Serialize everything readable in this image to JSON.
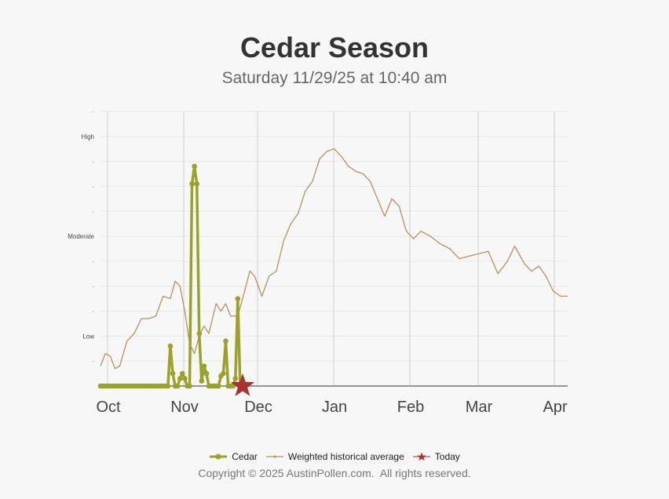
{
  "chart_data": {
    "type": "line",
    "title": "Cedar Season",
    "subtitle": "Saturday 11/29/25 at 10:40 am",
    "x_ticks": [
      "Oct",
      "Nov",
      "Dec",
      "Jan",
      "Feb",
      "Mar",
      "Apr"
    ],
    "y_ticks": [
      "",
      "Low",
      "",
      "",
      "",
      "Moderate",
      "",
      "",
      "",
      "High",
      ""
    ],
    "grid": true,
    "legend_position": "bottom",
    "series": [
      {
        "name": "Cedar",
        "color": "#9aa22a",
        "points": [
          [
            "2025-10-01",
            0
          ],
          [
            "2025-10-05",
            0
          ],
          [
            "2025-10-10",
            0
          ],
          [
            "2025-10-15",
            0
          ],
          [
            "2025-10-20",
            0
          ],
          [
            "2025-10-25",
            0
          ],
          [
            "2025-10-29",
            0
          ],
          [
            "2025-10-30",
            1.6
          ],
          [
            "2025-10-31",
            0.5
          ],
          [
            "2025-11-01",
            0
          ],
          [
            "2025-11-02",
            0
          ],
          [
            "2025-11-03",
            0.3
          ],
          [
            "2025-11-04",
            0.5
          ],
          [
            "2025-11-05",
            0.3
          ],
          [
            "2025-11-06",
            0
          ],
          [
            "2025-11-07",
            0
          ],
          [
            "2025-11-08",
            8.1
          ],
          [
            "2025-11-09",
            8.8
          ],
          [
            "2025-11-10",
            8.1
          ],
          [
            "2025-11-11",
            2.1
          ],
          [
            "2025-11-12",
            0.2
          ],
          [
            "2025-11-13",
            0.8
          ],
          [
            "2025-11-14",
            0.5
          ],
          [
            "2025-11-15",
            0
          ],
          [
            "2025-11-16",
            0
          ],
          [
            "2025-11-17",
            0
          ],
          [
            "2025-11-18",
            0
          ],
          [
            "2025-11-19",
            0
          ],
          [
            "2025-11-20",
            0.4
          ],
          [
            "2025-11-21",
            0.5
          ],
          [
            "2025-11-22",
            1.8
          ],
          [
            "2025-11-23",
            0
          ],
          [
            "2025-11-24",
            0
          ],
          [
            "2025-11-25",
            0
          ],
          [
            "2025-11-26",
            0.3
          ],
          [
            "2025-11-27",
            3.5
          ],
          [
            "2025-11-28",
            0
          ]
        ]
      },
      {
        "name": "Weighted historical average",
        "color": "#b89060",
        "points": [
          [
            "2025-10-01",
            0.8
          ],
          [
            "2025-10-03",
            1.3
          ],
          [
            "2025-10-05",
            1.2
          ],
          [
            "2025-10-07",
            0.7
          ],
          [
            "2025-10-09",
            0.8
          ],
          [
            "2025-10-12",
            1.8
          ],
          [
            "2025-10-15",
            2.1
          ],
          [
            "2025-10-18",
            2.7
          ],
          [
            "2025-10-21",
            2.7
          ],
          [
            "2025-10-24",
            2.8
          ],
          [
            "2025-10-27",
            3.6
          ],
          [
            "2025-10-30",
            3.5
          ],
          [
            "2025-11-01",
            4.2
          ],
          [
            "2025-11-03",
            4.0
          ],
          [
            "2025-11-05",
            3.0
          ],
          [
            "2025-11-07",
            1.7
          ],
          [
            "2025-11-09",
            1.3
          ],
          [
            "2025-11-11",
            2.0
          ],
          [
            "2025-11-13",
            2.4
          ],
          [
            "2025-11-15",
            2.1
          ],
          [
            "2025-11-18",
            3.3
          ],
          [
            "2025-11-20",
            3.0
          ],
          [
            "2025-11-22",
            3.3
          ],
          [
            "2025-11-24",
            2.8
          ],
          [
            "2025-11-27",
            2.8
          ],
          [
            "2025-11-29",
            3.5
          ],
          [
            "2025-12-02",
            4.6
          ],
          [
            "2025-12-04",
            4.4
          ],
          [
            "2025-12-07",
            3.6
          ],
          [
            "2025-12-10",
            4.4
          ],
          [
            "2025-12-13",
            4.6
          ],
          [
            "2025-12-16",
            5.8
          ],
          [
            "2025-12-19",
            6.5
          ],
          [
            "2025-12-22",
            6.9
          ],
          [
            "2025-12-25",
            7.8
          ],
          [
            "2025-12-28",
            8.2
          ],
          [
            "2025-12-31",
            9.1
          ],
          [
            "2026-01-03",
            9.4
          ],
          [
            "2026-01-06",
            9.5
          ],
          [
            "2026-01-09",
            9.2
          ],
          [
            "2026-01-12",
            8.8
          ],
          [
            "2026-01-15",
            8.6
          ],
          [
            "2026-01-18",
            8.5
          ],
          [
            "2026-01-21",
            8.2
          ],
          [
            "2026-01-24",
            7.5
          ],
          [
            "2026-01-27",
            6.8
          ],
          [
            "2026-01-30",
            7.5
          ],
          [
            "2026-02-02",
            7.2
          ],
          [
            "2026-02-05",
            6.2
          ],
          [
            "2026-02-08",
            5.9
          ],
          [
            "2026-02-11",
            6.2
          ],
          [
            "2026-02-15",
            6.0
          ],
          [
            "2026-02-19",
            5.7
          ],
          [
            "2026-02-23",
            5.5
          ],
          [
            "2026-02-27",
            5.1
          ],
          [
            "2026-03-03",
            5.2
          ],
          [
            "2026-03-07",
            5.3
          ],
          [
            "2026-03-11",
            5.4
          ],
          [
            "2026-03-15",
            4.5
          ],
          [
            "2026-03-19",
            5.0
          ],
          [
            "2026-03-22",
            5.6
          ],
          [
            "2026-03-26",
            4.9
          ],
          [
            "2026-03-29",
            4.6
          ],
          [
            "2026-04-01",
            4.8
          ],
          [
            "2026-04-04",
            4.4
          ],
          [
            "2026-04-07",
            3.8
          ],
          [
            "2026-04-10",
            3.6
          ],
          [
            "2026-04-13",
            3.6
          ]
        ]
      },
      {
        "name": "Today",
        "color": "#a83232",
        "points": [
          [
            "2025-11-29",
            0
          ]
        ]
      }
    ]
  },
  "copyright": "Copyright © 2025 AustinPollen.com.  All rights reserved."
}
